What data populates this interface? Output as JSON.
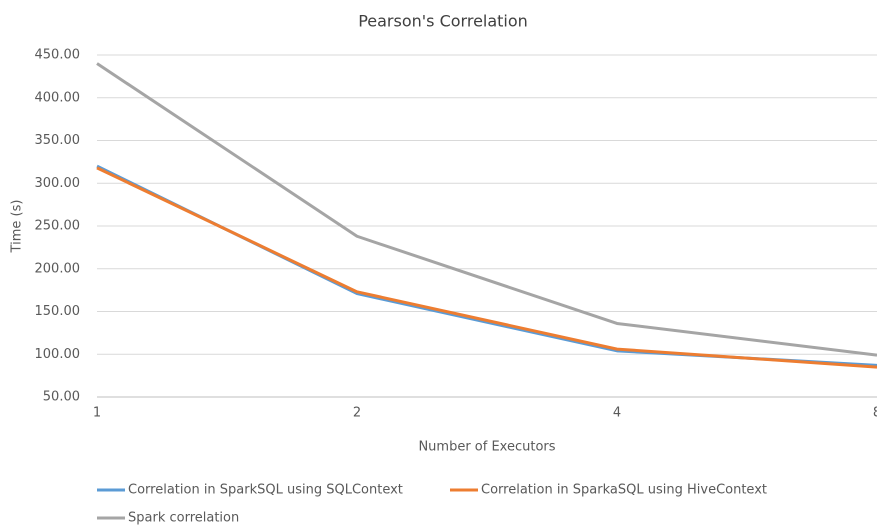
{
  "chart_data": {
    "type": "line",
    "title": "Pearson's Correlation",
    "x_label": "Number of Executors",
    "y_label": "Time (s)",
    "categories": [
      "1",
      "2",
      "4",
      "8"
    ],
    "series": [
      {
        "name": "Correlation in SparkSQL using SQLContext",
        "color": "#5b9bd5",
        "values": [
          320,
          171,
          104,
          87
        ]
      },
      {
        "name": "Correlation in SparkaSQL using HiveContext",
        "color": "#ed7d31",
        "values": [
          318,
          173,
          106,
          85
        ]
      },
      {
        "name": "Spark correlation",
        "color": "#a5a5a5",
        "values": [
          440,
          238,
          136,
          99
        ]
      }
    ],
    "ylim": [
      50,
      450
    ],
    "yticks": [
      {
        "value": 50,
        "label": "50.00"
      },
      {
        "value": 100,
        "label": "100.00"
      },
      {
        "value": 150,
        "label": "150.00"
      },
      {
        "value": 200,
        "label": "200.00"
      },
      {
        "value": 250,
        "label": "250.00"
      },
      {
        "value": 300,
        "label": "300.00"
      },
      {
        "value": 350,
        "label": "350.00"
      },
      {
        "value": 400,
        "label": "400.00"
      },
      {
        "value": 450,
        "label": "450.00"
      }
    ],
    "grid": true
  }
}
